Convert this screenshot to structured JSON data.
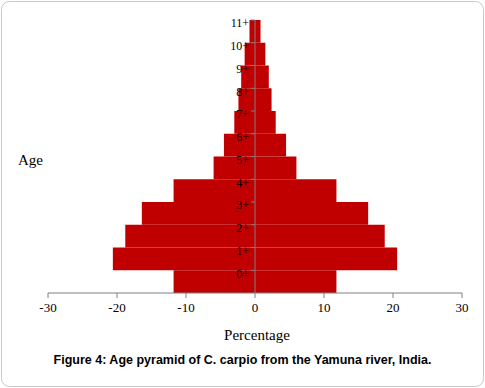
{
  "chart_data": {
    "type": "bar",
    "orientation": "horizontal",
    "title": "Figure 4: Age pyramid of C. carpio from the Yamuna river, India.",
    "x_label": "Percentage",
    "y_label": "Age",
    "categories": [
      "0+",
      "1+",
      "2+",
      "3+",
      "4+",
      "5+",
      "6+",
      "7+",
      "8+",
      "9+",
      "10+",
      "11+"
    ],
    "series": [
      {
        "color": "#c00000",
        "values": [
          -11.8,
          -20.6,
          -18.8,
          -16.4,
          -11.8,
          -6,
          -4.5,
          -3,
          -2.4,
          -2,
          -1.5,
          -0.8
        ]
      },
      {
        "color": "#c00000",
        "values": [
          11.8,
          20.6,
          18.8,
          16.4,
          11.8,
          6,
          4.5,
          3,
          2.4,
          2,
          1.5,
          0.8
        ]
      }
    ],
    "xlim": [
      -30,
      30
    ],
    "xticks": [
      -30,
      -20,
      -10,
      0,
      10,
      20,
      30
    ],
    "grid": false
  }
}
